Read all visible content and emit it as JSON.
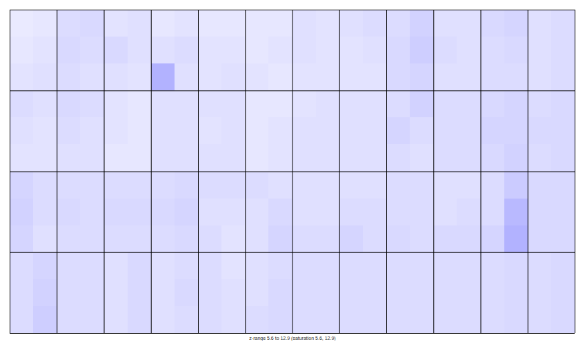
{
  "chart_data": {
    "type": "heatmap",
    "caption": "z-range 5.6 to 12.9 (saturation 5.6, 12.9)",
    "zlim": [
      5.6,
      12.9
    ],
    "color_range": [
      "#ffffff",
      "#0000ff"
    ],
    "tick_labels": false,
    "cells": [
      [
        [
          [
            6.2,
            6.3
          ],
          [
            6.3,
            6.4
          ],
          [
            6.4,
            6.5
          ]
        ],
        [
          [
            6.6,
            6.7
          ],
          [
            6.7,
            6.6
          ],
          [
            6.6,
            6.5
          ]
        ],
        [
          [
            6.4,
            6.5
          ],
          [
            6.7,
            6.5
          ],
          [
            6.5,
            6.4
          ]
        ],
        [
          [
            6.3,
            6.4
          ],
          [
            6.5,
            6.6
          ],
          [
            7.8,
            6.5
          ]
        ],
        [
          [
            6.3,
            6.3
          ],
          [
            6.4,
            6.4
          ],
          [
            6.4,
            6.5
          ]
        ],
        [
          [
            6.3,
            6.3
          ],
          [
            6.3,
            6.4
          ],
          [
            6.4,
            6.3
          ]
        ],
        [
          [
            6.5,
            6.4
          ],
          [
            6.5,
            6.4
          ],
          [
            6.4,
            6.4
          ]
        ],
        [
          [
            6.5,
            6.6
          ],
          [
            6.4,
            6.5
          ],
          [
            6.4,
            6.4
          ]
        ],
        [
          [
            6.6,
            6.9
          ],
          [
            6.7,
            7.0
          ],
          [
            6.7,
            6.8
          ]
        ],
        [
          [
            6.5,
            6.5
          ],
          [
            6.6,
            6.5
          ],
          [
            6.5,
            6.5
          ]
        ],
        [
          [
            6.7,
            6.8
          ],
          [
            6.6,
            6.7
          ],
          [
            6.6,
            6.6
          ]
        ],
        [
          [
            6.5,
            6.6
          ],
          [
            6.5,
            6.6
          ],
          [
            6.5,
            6.6
          ]
        ]
      ],
      [
        [
          [
            6.6,
            6.5
          ],
          [
            6.5,
            6.4
          ],
          [
            6.4,
            6.4
          ]
        ],
        [
          [
            6.7,
            6.6
          ],
          [
            6.6,
            6.5
          ],
          [
            6.5,
            6.5
          ]
        ],
        [
          [
            6.4,
            6.3
          ],
          [
            6.4,
            6.3
          ],
          [
            6.3,
            6.3
          ]
        ],
        [
          [
            6.5,
            6.5
          ],
          [
            6.5,
            6.5
          ],
          [
            6.5,
            6.5
          ]
        ],
        [
          [
            6.5,
            6.5
          ],
          [
            6.4,
            6.5
          ],
          [
            6.5,
            6.5
          ]
        ],
        [
          [
            6.3,
            6.3
          ],
          [
            6.3,
            6.4
          ],
          [
            6.3,
            6.4
          ]
        ],
        [
          [
            6.4,
            6.5
          ],
          [
            6.5,
            6.5
          ],
          [
            6.5,
            6.5
          ]
        ],
        [
          [
            6.5,
            6.5
          ],
          [
            6.5,
            6.5
          ],
          [
            6.5,
            6.5
          ]
        ],
        [
          [
            6.6,
            6.9
          ],
          [
            6.8,
            6.6
          ],
          [
            6.6,
            6.5
          ]
        ],
        [
          [
            6.6,
            6.6
          ],
          [
            6.6,
            6.6
          ],
          [
            6.6,
            6.6
          ]
        ],
        [
          [
            6.7,
            6.8
          ],
          [
            6.8,
            6.8
          ],
          [
            6.7,
            6.9
          ]
        ],
        [
          [
            6.6,
            6.7
          ],
          [
            6.7,
            6.7
          ],
          [
            6.6,
            6.7
          ]
        ]
      ],
      [
        [
          [
            6.8,
            6.6
          ],
          [
            6.9,
            6.6
          ],
          [
            6.8,
            6.5
          ]
        ],
        [
          [
            6.6,
            6.6
          ],
          [
            6.7,
            6.6
          ],
          [
            6.6,
            6.6
          ]
        ],
        [
          [
            6.6,
            6.6
          ],
          [
            6.7,
            6.7
          ],
          [
            6.6,
            6.6
          ]
        ],
        [
          [
            6.6,
            6.7
          ],
          [
            6.7,
            6.8
          ],
          [
            6.6,
            6.7
          ]
        ],
        [
          [
            6.6,
            6.6
          ],
          [
            6.5,
            6.5
          ],
          [
            6.6,
            6.4
          ]
        ],
        [
          [
            6.6,
            6.5
          ],
          [
            6.5,
            6.7
          ],
          [
            6.5,
            6.8
          ]
        ],
        [
          [
            6.5,
            6.5
          ],
          [
            6.5,
            6.5
          ],
          [
            6.6,
            6.6
          ]
        ],
        [
          [
            6.5,
            6.5
          ],
          [
            6.6,
            6.6
          ],
          [
            6.8,
            6.6
          ]
        ],
        [
          [
            6.6,
            6.6
          ],
          [
            6.6,
            6.6
          ],
          [
            6.7,
            6.6
          ]
        ],
        [
          [
            6.5,
            6.5
          ],
          [
            6.5,
            6.6
          ],
          [
            6.7,
            6.7
          ]
        ],
        [
          [
            6.6,
            7.1
          ],
          [
            6.6,
            7.6
          ],
          [
            6.8,
            7.8
          ]
        ],
        [
          [
            6.7,
            6.7
          ],
          [
            6.7,
            6.7
          ],
          [
            6.7,
            6.7
          ]
        ]
      ],
      [
        [
          [
            6.6,
            6.8
          ],
          [
            6.6,
            6.9
          ],
          [
            6.6,
            7.0
          ]
        ],
        [
          [
            6.6,
            6.6
          ],
          [
            6.6,
            6.6
          ],
          [
            6.6,
            6.6
          ]
        ],
        [
          [
            6.5,
            6.7
          ],
          [
            6.5,
            6.7
          ],
          [
            6.5,
            6.7
          ]
        ],
        [
          [
            6.5,
            6.6
          ],
          [
            6.5,
            6.7
          ],
          [
            6.5,
            6.6
          ]
        ],
        [
          [
            6.6,
            6.4
          ],
          [
            6.6,
            6.5
          ],
          [
            6.6,
            6.5
          ]
        ],
        [
          [
            6.5,
            6.6
          ],
          [
            6.5,
            6.7
          ],
          [
            6.6,
            6.7
          ]
        ],
        [
          [
            6.6,
            6.6
          ],
          [
            6.6,
            6.6
          ],
          [
            6.6,
            6.6
          ]
        ],
        [
          [
            6.6,
            6.6
          ],
          [
            6.6,
            6.6
          ],
          [
            6.6,
            6.6
          ]
        ],
        [
          [
            6.6,
            6.6
          ],
          [
            6.6,
            6.6
          ],
          [
            6.6,
            6.6
          ]
        ],
        [
          [
            6.6,
            6.6
          ],
          [
            6.6,
            6.6
          ],
          [
            6.6,
            6.6
          ]
        ],
        [
          [
            6.6,
            6.7
          ],
          [
            6.6,
            6.7
          ],
          [
            6.6,
            6.7
          ]
        ],
        [
          [
            6.6,
            6.7
          ],
          [
            6.6,
            6.7
          ],
          [
            6.6,
            6.7
          ]
        ]
      ]
    ]
  }
}
